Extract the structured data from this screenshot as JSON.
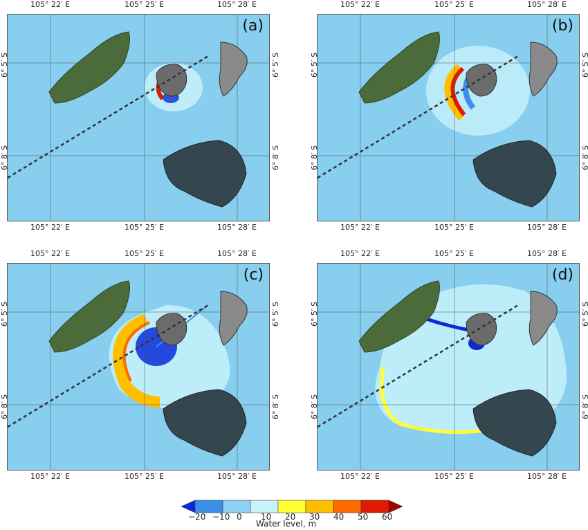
{
  "axes": {
    "lon_ticks": [
      "105° 22′ E",
      "105° 25′ E",
      "105° 28′ E"
    ],
    "lat_ticks": [
      "6° 5′ S",
      "6° 8′ S"
    ]
  },
  "panels": [
    {
      "label": "(a)"
    },
    {
      "label": "(b)"
    },
    {
      "label": "(c)"
    },
    {
      "label": "(d)"
    }
  ],
  "colorbar": {
    "title": "Water level, m",
    "ticks": [
      "−20",
      "−10",
      "0",
      "10",
      "20",
      "30",
      "40",
      "50",
      "60"
    ],
    "colors": [
      "#0a2bd6",
      "#3b8fe8",
      "#8fd0f5",
      "#c8f2fb",
      "#ffff33",
      "#ffbf00",
      "#ff6a00",
      "#e01a00",
      "#a80000"
    ]
  }
}
